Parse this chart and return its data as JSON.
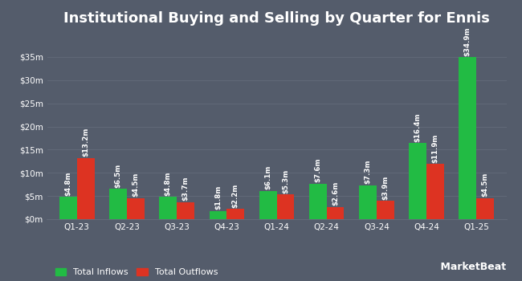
{
  "title": "Institutional Buying and Selling by Quarter for Ennis",
  "quarters": [
    "Q1-23",
    "Q2-23",
    "Q3-23",
    "Q4-23",
    "Q1-24",
    "Q2-24",
    "Q3-24",
    "Q4-24",
    "Q1-25"
  ],
  "inflows": [
    4.8,
    6.5,
    4.8,
    1.8,
    6.1,
    7.6,
    7.3,
    16.4,
    34.9
  ],
  "outflows": [
    13.2,
    4.5,
    3.7,
    2.2,
    5.3,
    2.6,
    3.9,
    11.9,
    4.5
  ],
  "inflow_labels": [
    "$4.8m",
    "$6.5m",
    "$4.8m",
    "$1.8m",
    "$6.1m",
    "$7.6m",
    "$7.3m",
    "$16.4m",
    "$34.9m"
  ],
  "outflow_labels": [
    "$13.2m",
    "$4.5m",
    "$3.7m",
    "$2.2m",
    "$5.3m",
    "$2.6m",
    "$3.9m",
    "$11.9m",
    "$4.5m"
  ],
  "inflow_color": "#22bb44",
  "outflow_color": "#dd3322",
  "background_color": "#545c6b",
  "plot_bg_color": "#545c6b",
  "text_color": "#ffffff",
  "grid_color": "#636b7a",
  "yticks": [
    0,
    5,
    10,
    15,
    20,
    25,
    30,
    35
  ],
  "ytick_labels": [
    "$0m",
    "$5m",
    "$10m",
    "$15m",
    "$20m",
    "$25m",
    "$30m",
    "$35m"
  ],
  "ylim": [
    0,
    40
  ],
  "legend_inflow": "Total Inflows",
  "legend_outflow": "Total Outflows",
  "bar_width": 0.35,
  "title_fontsize": 13,
  "label_fontsize": 6.2,
  "tick_fontsize": 7.5,
  "legend_fontsize": 8
}
